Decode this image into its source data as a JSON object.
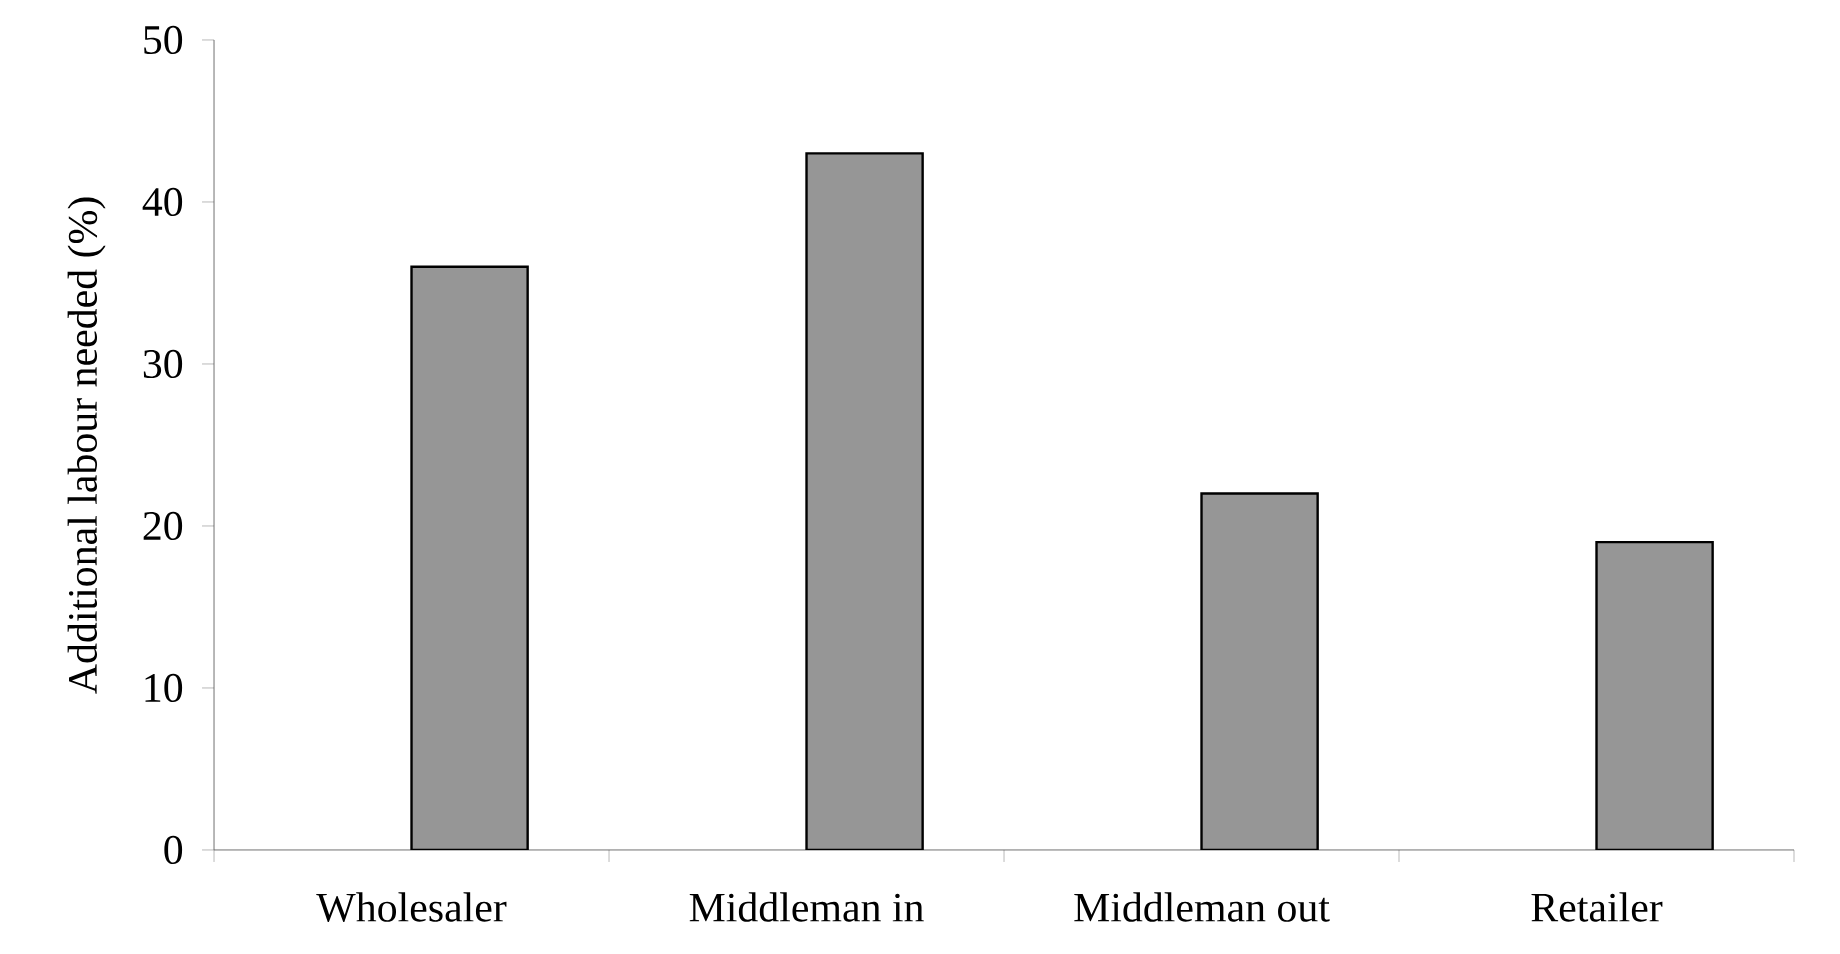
{
  "chart_data": {
    "type": "bar",
    "ylabel": "Additional labour needed (%)",
    "categories": [
      "Wholesaler",
      "Middleman in",
      "Middleman out",
      "Retailer"
    ],
    "values": [
      36,
      43,
      22,
      19
    ],
    "color": "#969696",
    "ylim": [
      0,
      50
    ],
    "yticks": [
      0,
      10,
      20,
      30,
      40,
      50
    ]
  }
}
